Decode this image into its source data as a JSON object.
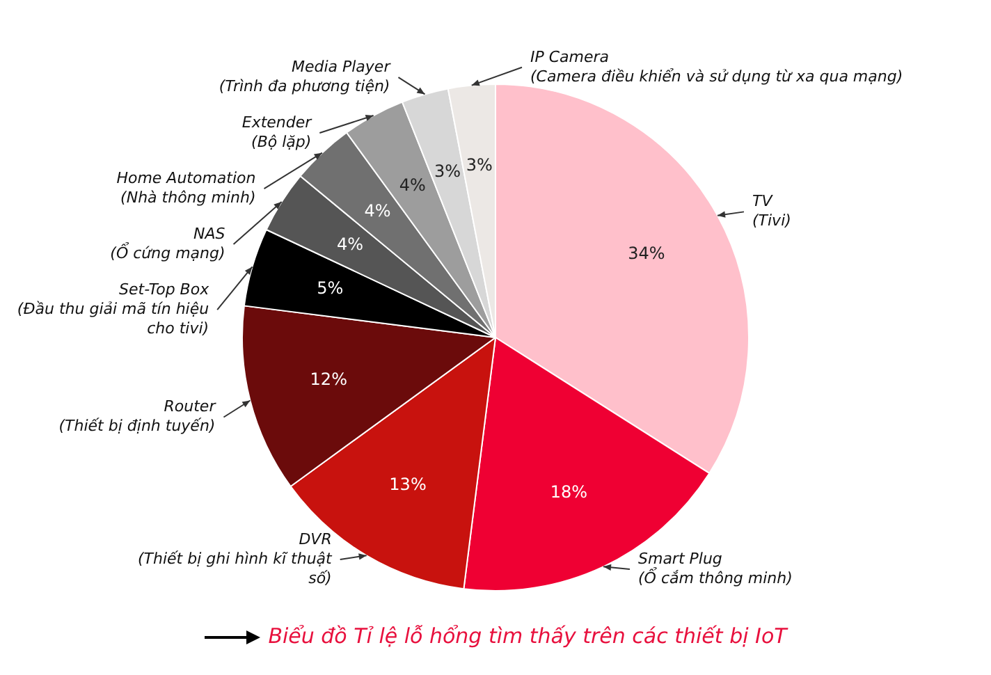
{
  "chart_data": {
    "type": "pie",
    "title": "Biểu đồ Tỉ lệ lỗ hổng tìm thấy trên các thiết bị IoT",
    "categories": [
      "TV\n(Tivi)",
      "Smart Plug\n(Ổ cắm thông minh)",
      "DVR\n(Thiết bị ghi hình kĩ thuật số)",
      "Router\n(Thiết bị định tuyến)",
      "Set-Top Box\n(Đầu thu giải mã tín hiệu cho tivi)",
      "NAS\n(Ổ cứng mạng)",
      "Home Automation\n(Nhà thông minh)",
      "Extender\n(Bộ lặp)",
      "Media Player\n(Trình đa phương tiện)",
      "IP Camera\n(Camera điều khiển và sử dụng từ xa qua mạng)"
    ],
    "values": [
      34,
      18,
      13,
      12,
      5,
      4,
      4,
      4,
      3,
      3
    ],
    "value_labels": [
      "34%",
      "18%",
      "13%",
      "12%",
      "5%",
      "4%",
      "4%",
      "4%",
      "3%",
      "3%"
    ],
    "colors": [
      "#ffc0cb",
      "#ef0033",
      "#c8120e",
      "#6b0b0b",
      "#000000",
      "#555555",
      "#707070",
      "#9d9d9d",
      "#d7d7d7",
      "#ece8e5"
    ],
    "legend": false
  }
}
